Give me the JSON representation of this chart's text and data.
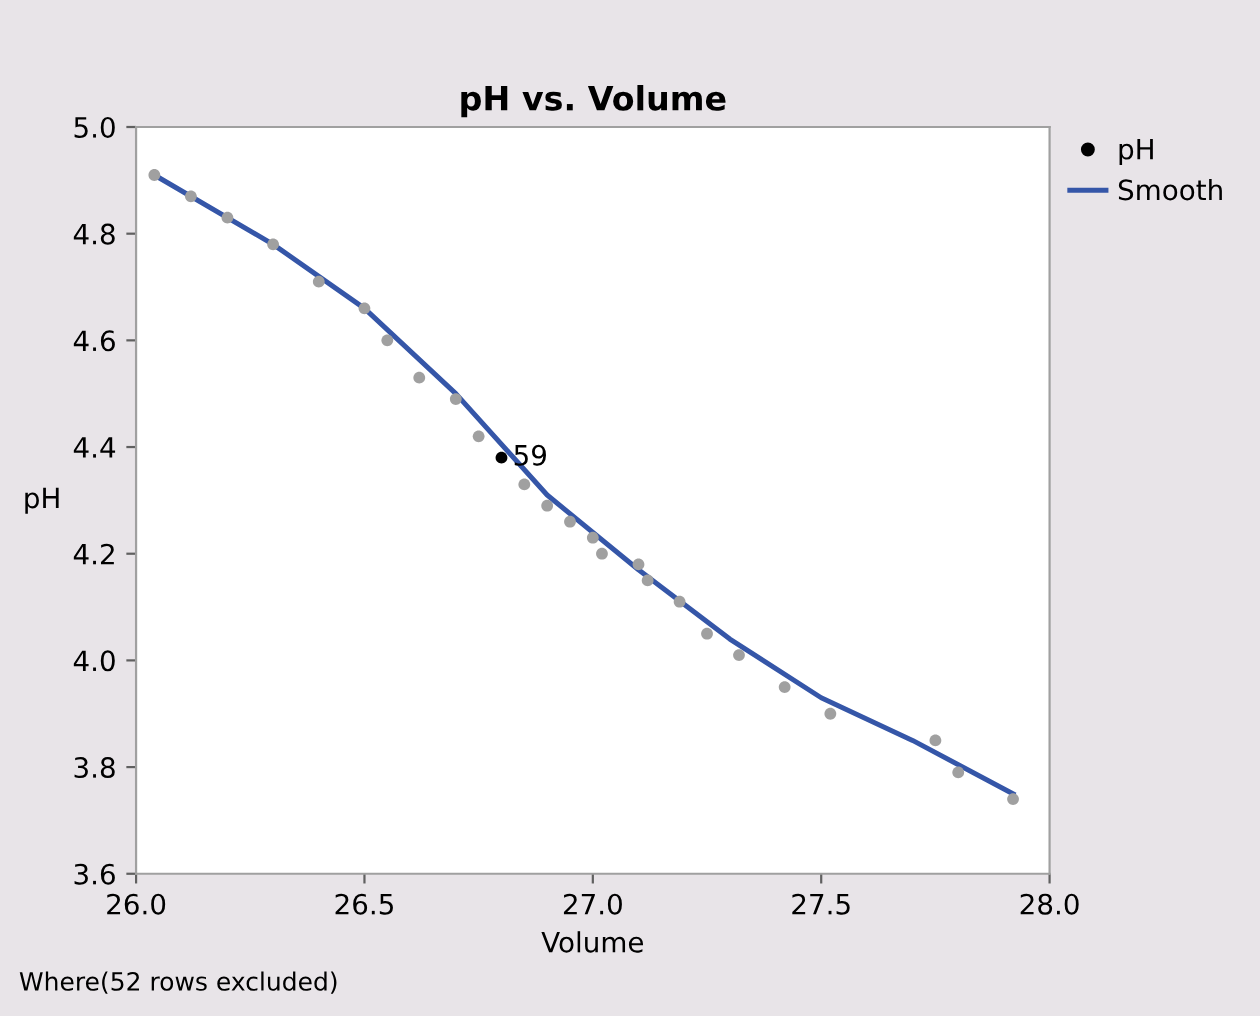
{
  "chart_data": {
    "type": "scatter",
    "title": "pH vs. Volume",
    "xlabel": "Volume",
    "ylabel": "pH",
    "xlim": [
      26.0,
      28.0
    ],
    "xticks": [
      {
        "value": 26.0,
        "label": "26.0"
      },
      {
        "value": 26.5,
        "label": "26.5"
      },
      {
        "value": 27.0,
        "label": "27.0"
      },
      {
        "value": 27.5,
        "label": "27.5"
      },
      {
        "value": 28.0,
        "label": "28.0"
      }
    ],
    "ylim": [
      3.6,
      5.0
    ],
    "yticks": [
      {
        "value": 3.6,
        "label": "3.6"
      },
      {
        "value": 3.8,
        "label": "3.8"
      },
      {
        "value": 4.0,
        "label": "4.0"
      },
      {
        "value": 4.2,
        "label": "4.2"
      },
      {
        "value": 4.4,
        "label": "4.4"
      },
      {
        "value": 4.6,
        "label": "4.6"
      },
      {
        "value": 4.8,
        "label": "4.8"
      },
      {
        "value": 5.0,
        "label": "5.0"
      }
    ],
    "grid": false,
    "legend": "right",
    "series": [
      {
        "name": "pH",
        "marker": "circle",
        "color": "#000000",
        "x": [
          26.04,
          26.12,
          26.2,
          26.3,
          26.4,
          26.5,
          26.55,
          26.62,
          26.7,
          26.75,
          26.8,
          26.85,
          26.9,
          26.95,
          27.0,
          27.02,
          27.1,
          27.12,
          27.19,
          27.25,
          27.32,
          27.42,
          27.52,
          27.75,
          27.8,
          27.92
        ],
        "values": [
          4.91,
          4.87,
          4.83,
          4.78,
          4.71,
          4.66,
          4.6,
          4.53,
          4.49,
          4.42,
          4.38,
          4.33,
          4.29,
          4.26,
          4.23,
          4.2,
          4.18,
          4.15,
          4.11,
          4.05,
          4.01,
          3.95,
          3.9,
          3.85,
          3.79,
          3.74
        ],
        "colors": [
          "#a0a0a0",
          "#a0a0a0",
          "#a0a0a0",
          "#a0a0a0",
          "#a0a0a0",
          "#a0a0a0",
          "#a0a0a0",
          "#a0a0a0",
          "#a0a0a0",
          "#a0a0a0",
          "#000000",
          "#a0a0a0",
          "#a0a0a0",
          "#a0a0a0",
          "#a0a0a0",
          "#a0a0a0",
          "#a0a0a0",
          "#a0a0a0",
          "#a0a0a0",
          "#a0a0a0",
          "#a0a0a0",
          "#a0a0a0",
          "#a0a0a0",
          "#a0a0a0",
          "#a0a0a0",
          "#a0a0a0"
        ]
      },
      {
        "name": "Smooth",
        "type": "line",
        "marker": "none",
        "line_style": "solid",
        "color": "#3556a8",
        "x": [
          26.04,
          26.3,
          26.5,
          26.7,
          26.9,
          27.1,
          27.3,
          27.5,
          27.7,
          27.92
        ],
        "values": [
          4.91,
          4.78,
          4.66,
          4.5,
          4.31,
          4.17,
          4.04,
          3.93,
          3.85,
          3.75
        ]
      }
    ],
    "annotations": [
      {
        "text": "59",
        "x": 26.8,
        "y": 4.38
      },
      "Where(52 rows excluded)"
    ]
  }
}
